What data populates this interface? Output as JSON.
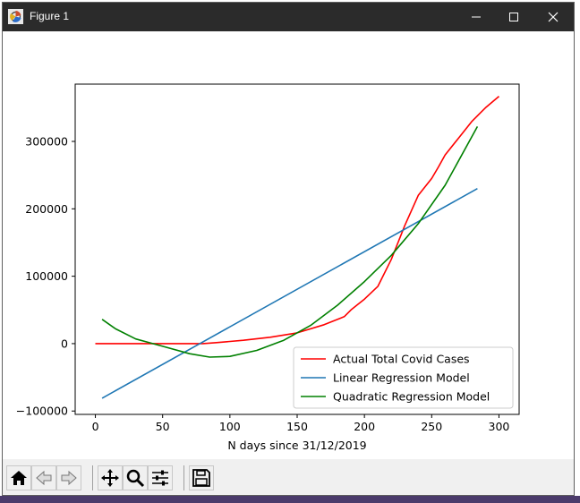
{
  "window": {
    "title": "Figure 1"
  },
  "chart_data": {
    "type": "line",
    "title": "",
    "xlabel": "N days since 31/12/2019",
    "ylabel": "",
    "xlim": [
      -15,
      315
    ],
    "ylim": [
      -105000,
      385000
    ],
    "xticks": [
      0,
      50,
      100,
      150,
      200,
      250,
      300
    ],
    "xtick_labels": [
      "0",
      "50",
      "100",
      "150",
      "200",
      "250",
      "300"
    ],
    "yticks": [
      -100000,
      0,
      100000,
      200000,
      300000
    ],
    "ytick_labels": [
      "−100000",
      "0",
      "100000",
      "200000",
      "300000"
    ],
    "grid": false,
    "legend_position": "lower-right",
    "series": [
      {
        "name": "Actual Total Covid Cases",
        "color": "#ff0000",
        "x": [
          0,
          80,
          90,
          110,
          130,
          150,
          170,
          185,
          190,
          195,
          200,
          210,
          220,
          230,
          240,
          250,
          255,
          260,
          270,
          280,
          290,
          300
        ],
        "y": [
          0,
          0,
          1500,
          5000,
          9500,
          16000,
          28000,
          40000,
          50000,
          58000,
          66000,
          85000,
          125000,
          175000,
          220000,
          245000,
          262000,
          280000,
          305000,
          330000,
          350000,
          367000
        ]
      },
      {
        "name": "Linear Regression Model",
        "color": "#1f77b4",
        "x": [
          5,
          284
        ],
        "y": [
          -81000,
          230000
        ]
      },
      {
        "name": "Quadratic Regression Model",
        "color": "#008000",
        "x": [
          5,
          15,
          30,
          50,
          70,
          85,
          100,
          120,
          140,
          160,
          180,
          200,
          220,
          240,
          260,
          284
        ],
        "y": [
          36000,
          22000,
          7000,
          -4000,
          -15000,
          -20000,
          -19000,
          -10000,
          5000,
          27000,
          57000,
          92000,
          131000,
          178000,
          235000,
          322000
        ]
      }
    ]
  },
  "toolbar": {
    "tools": [
      "home-icon",
      "back-icon",
      "forward-icon",
      "pan-icon",
      "zoom-icon",
      "configure-subplots-icon",
      "save-icon"
    ]
  }
}
